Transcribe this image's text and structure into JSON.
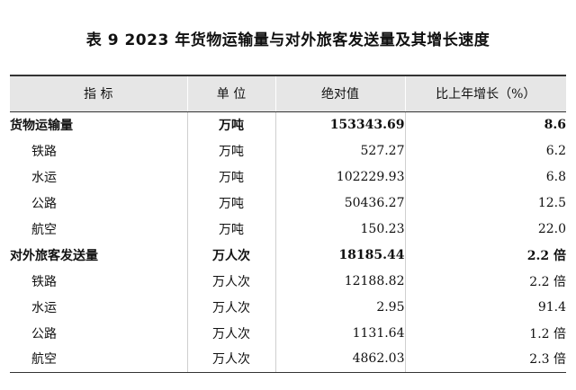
{
  "title": "表 9    2023 年货物运输量与对外旅客发送量及其增长速度",
  "table": {
    "headers": [
      "指    标",
      "单 位",
      "绝对值",
      "比上年增长（%）"
    ],
    "rows": [
      {
        "name": "货物运输量",
        "unit": "万吨",
        "value": "153343.69",
        "growth": "8.6",
        "total": true
      },
      {
        "name": "铁路",
        "unit": "万吨",
        "value": "527.27",
        "growth": "6.2",
        "total": false
      },
      {
        "name": "水运",
        "unit": "万吨",
        "value": "102229.93",
        "growth": "6.8",
        "total": false
      },
      {
        "name": "公路",
        "unit": "万吨",
        "value": "50436.27",
        "growth": "12.5",
        "total": false
      },
      {
        "name": "航空",
        "unit": "万吨",
        "value": "150.23",
        "growth": "22.0",
        "total": false
      },
      {
        "name": "对外旅客发送量",
        "unit": "万人次",
        "value": "18185.44",
        "growth": "2.2 倍",
        "total": true
      },
      {
        "name": "铁路",
        "unit": "万人次",
        "value": "12188.82",
        "growth": "2.2 倍",
        "total": false
      },
      {
        "name": "水运",
        "unit": "万人次",
        "value": "2.95",
        "growth": "91.4",
        "total": false
      },
      {
        "name": "公路",
        "unit": "万人次",
        "value": "1131.64",
        "growth": "1.2 倍",
        "total": false
      },
      {
        "name": "航空",
        "unit": "万人次",
        "value": "4862.03",
        "growth": "2.3 倍",
        "total": false
      }
    ]
  }
}
